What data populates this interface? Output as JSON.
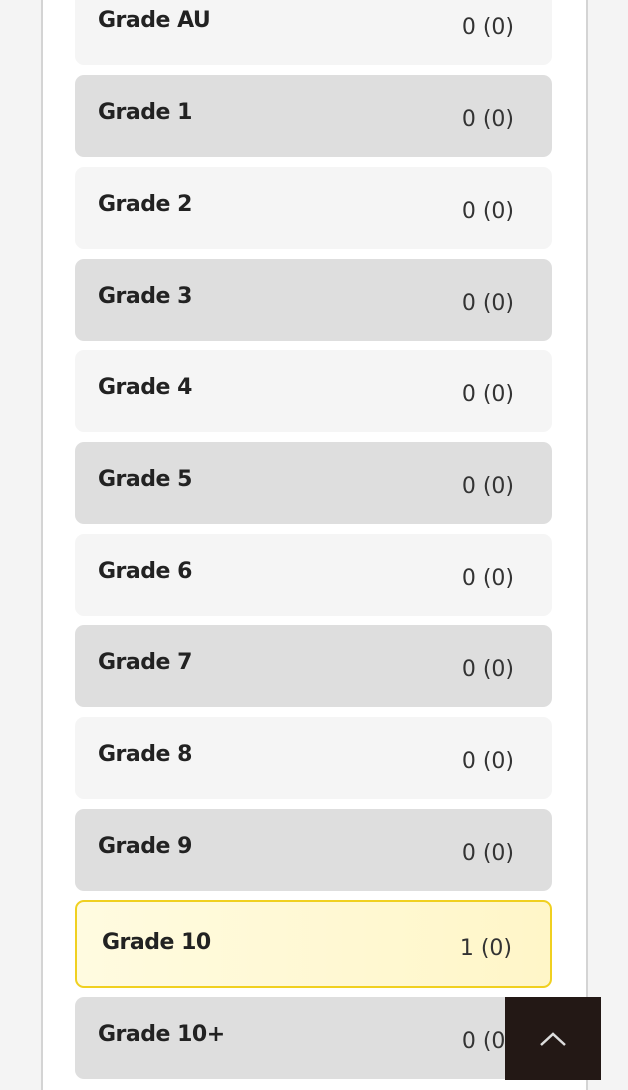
{
  "grades": [
    {
      "label": "Grade AU",
      "count": "0 (0)"
    },
    {
      "label": "Grade 1",
      "count": "0 (0)"
    },
    {
      "label": "Grade 2",
      "count": "0 (0)"
    },
    {
      "label": "Grade 3",
      "count": "0 (0)"
    },
    {
      "label": "Grade 4",
      "count": "0 (0)"
    },
    {
      "label": "Grade 5",
      "count": "0 (0)"
    },
    {
      "label": "Grade 6",
      "count": "0 (0)"
    },
    {
      "label": "Grade 7",
      "count": "0 (0)"
    },
    {
      "label": "Grade 8",
      "count": "0 (0)"
    },
    {
      "label": "Grade 9",
      "count": "0 (0)"
    },
    {
      "label": "Grade 10",
      "count": "1 (0)",
      "highlighted": true
    },
    {
      "label": "Grade 10+",
      "count": "0 (0)"
    }
  ],
  "colors": {
    "highlight_border": "#f0d020",
    "back_to_top": "#231815"
  },
  "back_to_top": {
    "icon": "chevron-up-icon"
  }
}
